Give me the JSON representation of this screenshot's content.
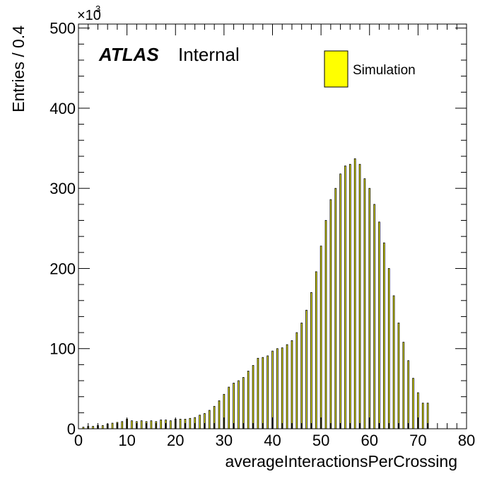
{
  "chart_data": {
    "type": "bar",
    "title": "",
    "xlabel": "averageInteractionsPerCrossing",
    "ylabel": "Entries / 0.4",
    "y_multiplier_label": "×10",
    "y_multiplier_exponent": "3",
    "xlim": [
      0,
      80
    ],
    "ylim": [
      0,
      505
    ],
    "bin_width": 0.4,
    "bar_fill_fraction": 0.5,
    "x_tick_labels": [
      "0",
      "10",
      "20",
      "30",
      "40",
      "50",
      "60",
      "70",
      "80"
    ],
    "y_tick_labels": [
      "0",
      "100",
      "200",
      "300",
      "400",
      "500"
    ],
    "grid": false,
    "legend_position": "top-right",
    "colors": {
      "bar_fill": "#ffff00",
      "bar_edge": "#000000",
      "axes": "#000000"
    },
    "annotations": {
      "atlas": "ATLAS",
      "internal": "Internal"
    },
    "series": [
      {
        "name": "Simulation",
        "x": [
          1.0,
          2.0,
          3.0,
          4.0,
          5.0,
          6.0,
          7.0,
          8.0,
          9.0,
          10.0,
          11.0,
          12.0,
          13.0,
          14.0,
          15.0,
          16.0,
          17.0,
          18.0,
          19.0,
          20.0,
          21.0,
          22.0,
          23.0,
          24.0,
          25.0,
          26.0,
          27.0,
          28.0,
          29.0,
          30.0,
          31.0,
          32.0,
          33.0,
          34.0,
          35.0,
          36.0,
          37.0,
          38.0,
          39.0,
          40.0,
          41.0,
          42.0,
          43.0,
          44.0,
          45.0,
          46.0,
          47.0,
          48.0,
          49.0,
          50.0,
          51.0,
          52.0,
          53.0,
          54.0,
          55.0,
          56.0,
          57.0,
          58.0,
          59.0,
          60.0,
          61.0,
          62.0,
          63.0,
          64.0,
          65.0,
          66.0,
          67.0,
          68.0,
          69.0,
          70.0,
          71.0,
          72.0,
          73.0,
          74.0,
          75.0,
          76.0,
          77.0,
          78.0,
          79.0
        ],
        "values": [
          2,
          3,
          3,
          4,
          4,
          6,
          7,
          8,
          9,
          12,
          10,
          9,
          10,
          9,
          10,
          9,
          11,
          11,
          10,
          12,
          12,
          12,
          13,
          14,
          17,
          19,
          23,
          28,
          35,
          43,
          52,
          57,
          60,
          64,
          72,
          79,
          88,
          89,
          91,
          97,
          100,
          101,
          105,
          110,
          120,
          132,
          148,
          170,
          196,
          228,
          260,
          286,
          300,
          318,
          328,
          330,
          337,
          330,
          312,
          300,
          280,
          258,
          232,
          200,
          166,
          132,
          108,
          85,
          63,
          45,
          32,
          32,
          0,
          0,
          0,
          0,
          0,
          0,
          0
        ]
      }
    ]
  }
}
